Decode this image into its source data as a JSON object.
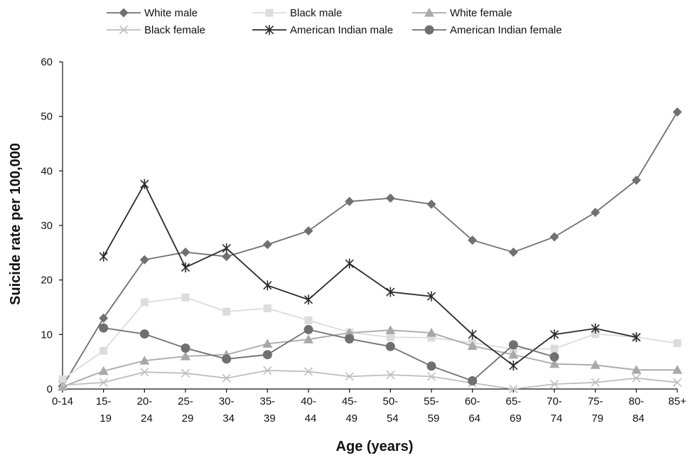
{
  "chart_data": {
    "type": "line",
    "xlabel": "Age (years)",
    "ylabel": "Suicide rate per 100,000",
    "ylim": [
      0,
      60
    ],
    "yticks": [
      0,
      10,
      20,
      30,
      40,
      50,
      60
    ],
    "categories": [
      {
        "line1": "0-14",
        "line2": ""
      },
      {
        "line1": "15-",
        "line2": "19"
      },
      {
        "line1": "20-",
        "line2": "24"
      },
      {
        "line1": "25-",
        "line2": "29"
      },
      {
        "line1": "30-",
        "line2": "34"
      },
      {
        "line1": "35-",
        "line2": "39"
      },
      {
        "line1": "40-",
        "line2": "44"
      },
      {
        "line1": "45-",
        "line2": "49"
      },
      {
        "line1": "50-",
        "line2": "54"
      },
      {
        "line1": "55-",
        "line2": "59"
      },
      {
        "line1": "60-",
        "line2": "64"
      },
      {
        "line1": "65-",
        "line2": "69"
      },
      {
        "line1": "70-",
        "line2": "74"
      },
      {
        "line1": "75-",
        "line2": "79"
      },
      {
        "line1": "80-",
        "line2": "84"
      },
      {
        "line1": "85+",
        "line2": ""
      }
    ],
    "legend_position": "top",
    "grid": false,
    "series": [
      {
        "name": "White male",
        "marker": "diamond",
        "color": "#707070",
        "values": [
          0.5,
          13.0,
          23.7,
          25.1,
          24.3,
          26.5,
          29.0,
          34.4,
          35.0,
          33.9,
          27.3,
          25.1,
          27.9,
          32.4,
          38.3,
          50.8
        ]
      },
      {
        "name": "Black male",
        "marker": "square",
        "color": "#dcdcdc",
        "values": [
          1.8,
          7.0,
          15.9,
          16.8,
          14.2,
          14.8,
          12.6,
          10.4,
          9.5,
          9.4,
          8.5,
          7.3,
          7.4,
          10.1,
          9.5,
          8.4
        ]
      },
      {
        "name": "White female",
        "marker": "triangle",
        "color": "#a8a8a8",
        "values": [
          0.4,
          3.3,
          5.2,
          6.0,
          6.3,
          8.3,
          9.1,
          10.3,
          10.8,
          10.3,
          7.9,
          6.3,
          4.6,
          4.4,
          3.5,
          3.5
        ]
      },
      {
        "name": "Black female",
        "marker": "x",
        "color": "#bdbdbd",
        "values": [
          0.7,
          1.2,
          3.1,
          2.9,
          2.0,
          3.4,
          3.2,
          2.3,
          2.6,
          2.3,
          1.1,
          0.0,
          0.9,
          1.2,
          2.0,
          1.2
        ]
      },
      {
        "name": "American Indian male",
        "marker": "asterisk",
        "color": "#2a2a2a",
        "values": [
          null,
          24.3,
          37.6,
          22.3,
          25.8,
          19.0,
          16.4,
          23.0,
          17.8,
          17.0,
          10.0,
          4.3,
          10.0,
          11.1,
          9.5,
          null
        ]
      },
      {
        "name": "American Indian female",
        "marker": "circle",
        "color": "#6f6f6f",
        "values": [
          null,
          11.2,
          10.1,
          7.5,
          5.5,
          6.3,
          10.9,
          9.2,
          7.8,
          4.2,
          1.5,
          8.1,
          5.9,
          null,
          null,
          null
        ]
      }
    ]
  }
}
